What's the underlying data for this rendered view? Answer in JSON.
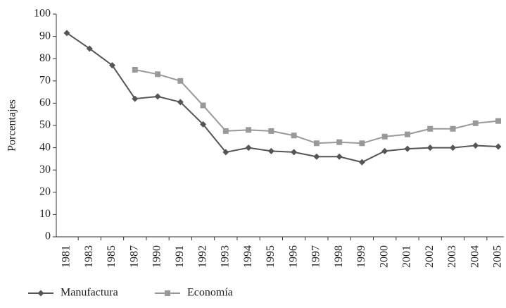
{
  "chart_data": {
    "type": "line",
    "y_label": "Porcentajes",
    "categories": [
      "1981",
      "1983",
      "1985",
      "1987",
      "1990",
      "1991",
      "1992",
      "1993",
      "1994",
      "1995",
      "1996",
      "1997",
      "1998",
      "1999",
      "2000",
      "2001",
      "2002",
      "2003",
      "2004",
      "2005"
    ],
    "series": [
      {
        "name": "Manufactura",
        "color": "#555555",
        "marker": "diamond",
        "values": [
          91.5,
          84.5,
          77,
          62,
          63,
          60.5,
          50.5,
          38,
          40,
          38.5,
          38,
          36,
          36,
          33.5,
          38.5,
          39.5,
          40,
          40,
          41,
          40.5
        ]
      },
      {
        "name": "Economía",
        "color": "#999999",
        "marker": "square",
        "values": [
          null,
          null,
          null,
          75,
          73,
          70,
          59,
          47.5,
          48,
          47.5,
          45.5,
          42,
          42.5,
          42,
          45,
          46,
          48.5,
          48.5,
          51,
          52
        ]
      }
    ],
    "ylim": [
      0,
      100
    ],
    "yticks": [
      0,
      10,
      20,
      30,
      40,
      50,
      60,
      70,
      80,
      90,
      100
    ],
    "grid": false
  }
}
